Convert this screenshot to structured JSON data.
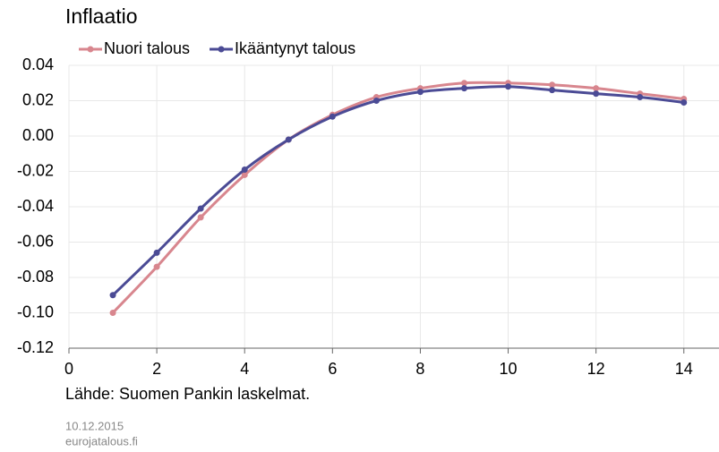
{
  "chart_data": {
    "type": "line",
    "title": "Inflaatio",
    "x": [
      1,
      2,
      3,
      4,
      5,
      6,
      7,
      8,
      9,
      10,
      11,
      12,
      13,
      14
    ],
    "series": [
      {
        "name": "Nuori talous",
        "color": "#d8868e",
        "values": [
          -0.1,
          -0.074,
          -0.046,
          -0.022,
          -0.002,
          0.012,
          0.022,
          0.027,
          0.03,
          0.03,
          0.029,
          0.027,
          0.024,
          0.021
        ]
      },
      {
        "name": "Ikääntynyt talous",
        "color": "#4b4b95",
        "values": [
          -0.09,
          -0.066,
          -0.041,
          -0.019,
          -0.002,
          0.011,
          0.02,
          0.025,
          0.027,
          0.028,
          0.026,
          0.024,
          0.022,
          0.019
        ]
      }
    ],
    "xlim": [
      0,
      14.8
    ],
    "xticks": [
      0,
      2,
      4,
      6,
      8,
      10,
      12,
      14
    ],
    "ylim": [
      -0.12,
      0.04
    ],
    "yticks": [
      -0.12,
      {
        "value": -0.1,
        "label": "-0.10"
      },
      -0.08,
      -0.06,
      -0.04,
      -0.02,
      {
        "value": 0,
        "label": "0.00"
      },
      0.02,
      0.04
    ],
    "grid": true,
    "legend": "top",
    "source": "Lähde: Suomen Pankin laskelmat.",
    "date": "10.12.2015",
    "site": "eurojatalous.fi"
  }
}
